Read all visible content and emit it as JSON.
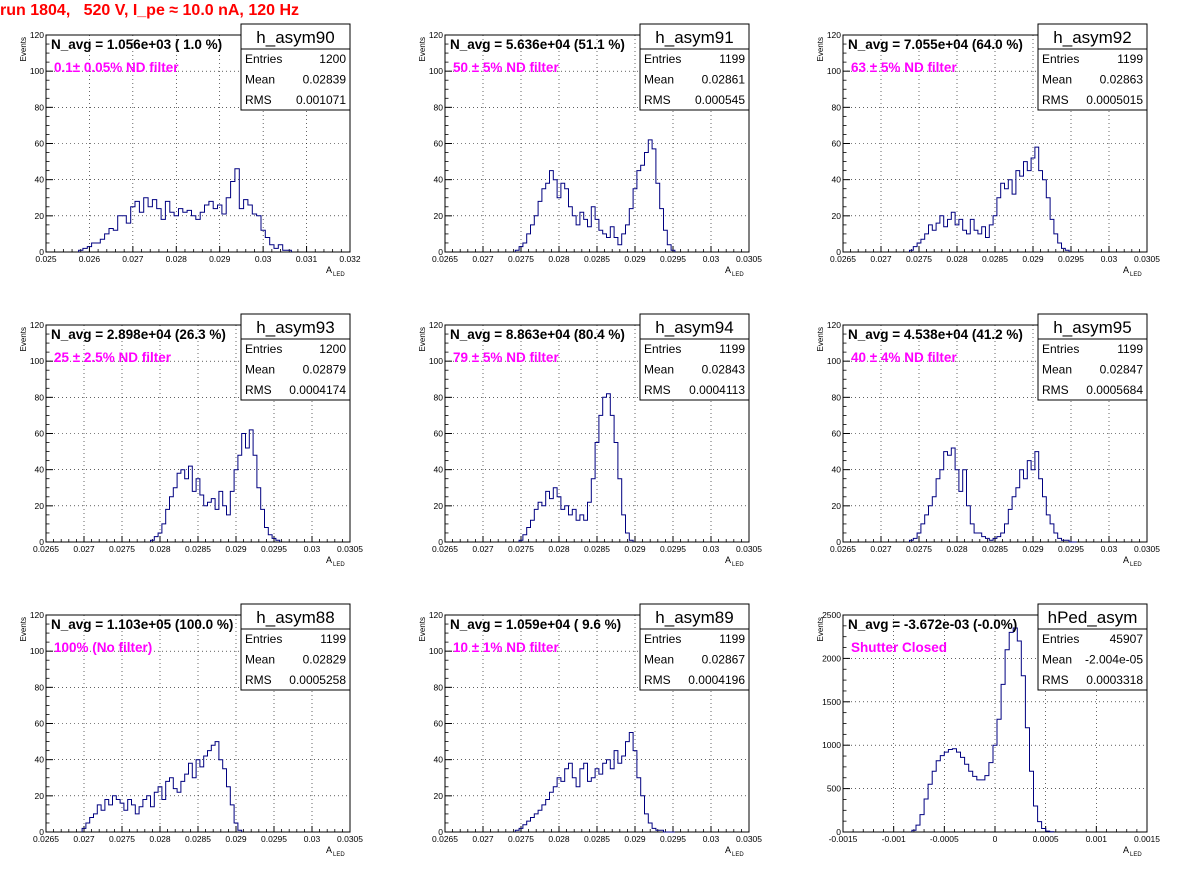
{
  "page": {
    "title": "run 1804,   520 V, I_pe ≈ 10.0 nA, 120 Hz",
    "title_color": "#ff0000",
    "annotation_color": "#ff00ff",
    "histogram_color": "#000080"
  },
  "chart_data": [
    {
      "type": "histogram",
      "name": "h_asym90",
      "xlabel": "A_LED",
      "ylabel": "Events",
      "xlim": [
        0.025,
        0.032
      ],
      "ylim": [
        0,
        120
      ],
      "xticks": [
        "0.025",
        "0.026",
        "0.027",
        "0.028",
        "0.029",
        "0.03",
        "0.031",
        "0.032"
      ],
      "yticks": [
        "0",
        "20",
        "40",
        "60",
        "80",
        "100",
        "120"
      ],
      "navg": "N_avg = 1.056e+03 ( 1.0 %)",
      "filter": "0.1± 0.05% ND filter",
      "stats": [
        [
          "Entries",
          "1200"
        ],
        [
          "Mean",
          "0.02839"
        ],
        [
          "RMS",
          "0.001071"
        ]
      ],
      "x": [
        0.0258,
        0.0259,
        0.026,
        0.0261,
        0.0262,
        0.0263,
        0.0264,
        0.0265,
        0.0266,
        0.0267,
        0.0268,
        0.0269,
        0.027,
        0.0271,
        0.0272,
        0.0273,
        0.0274,
        0.0275,
        0.0276,
        0.0277,
        0.0278,
        0.0279,
        0.028,
        0.0281,
        0.0282,
        0.0283,
        0.0284,
        0.0285,
        0.0286,
        0.0287,
        0.0288,
        0.0289,
        0.029,
        0.0291,
        0.0292,
        0.0293,
        0.0294,
        0.0295,
        0.0296,
        0.0297,
        0.0298,
        0.0299,
        0.03,
        0.0301,
        0.0302,
        0.0303,
        0.0304,
        0.0305,
        0.0306
      ],
      "values": [
        1,
        2,
        3,
        5,
        5,
        7,
        10,
        13,
        12,
        20,
        20,
        16,
        25,
        28,
        22,
        30,
        25,
        29,
        24,
        18,
        28,
        22,
        20,
        24,
        22,
        23,
        20,
        18,
        22,
        26,
        28,
        24,
        26,
        21,
        30,
        39,
        46,
        24,
        29,
        26,
        21,
        20,
        12,
        8,
        4,
        2,
        4,
        1,
        1
      ]
    },
    {
      "type": "histogram",
      "name": "h_asym91",
      "xlabel": "A_LED",
      "ylabel": "Events",
      "xlim": [
        0.0265,
        0.0305
      ],
      "ylim": [
        0,
        120
      ],
      "xticks": [
        "0.0265",
        "0.027",
        "0.0275",
        "0.028",
        "0.0285",
        "0.029",
        "0.0295",
        "0.03",
        "0.0305"
      ],
      "yticks": [
        "0",
        "20",
        "40",
        "60",
        "80",
        "100",
        "120"
      ],
      "navg": "N_avg = 5.636e+04 (51.1 %)",
      "filter": "50 ± 5% ND filter",
      "stats": [
        [
          "Entries",
          "1199"
        ],
        [
          "Mean",
          "0.02861"
        ],
        [
          "RMS",
          "0.000545"
        ]
      ],
      "x": [
        0.02745,
        0.0275,
        0.02755,
        0.0276,
        0.02765,
        0.0277,
        0.02775,
        0.0278,
        0.02785,
        0.0279,
        0.02795,
        0.028,
        0.02805,
        0.0281,
        0.02815,
        0.0282,
        0.02825,
        0.0283,
        0.02835,
        0.0284,
        0.02845,
        0.0285,
        0.02855,
        0.0286,
        0.02865,
        0.0287,
        0.02875,
        0.0288,
        0.02885,
        0.0289,
        0.02895,
        0.029,
        0.02905,
        0.0291,
        0.02915,
        0.0292,
        0.02925,
        0.0293,
        0.02935,
        0.0294,
        0.02945,
        0.0295
      ],
      "values": [
        1,
        3,
        5,
        10,
        15,
        20,
        28,
        35,
        38,
        45,
        40,
        30,
        38,
        35,
        25,
        20,
        15,
        22,
        18,
        14,
        25,
        18,
        12,
        10,
        8,
        14,
        8,
        4,
        10,
        15,
        24,
        35,
        45,
        48,
        55,
        62,
        57,
        38,
        24,
        12,
        4,
        1
      ]
    },
    {
      "type": "histogram",
      "name": "h_asym92",
      "xlabel": "A_LED",
      "ylabel": "Events",
      "xlim": [
        0.0265,
        0.0305
      ],
      "ylim": [
        0,
        120
      ],
      "xticks": [
        "0.0265",
        "0.027",
        "0.0275",
        "0.028",
        "0.0285",
        "0.029",
        "0.0295",
        "0.03",
        "0.0305"
      ],
      "yticks": [
        "0",
        "20",
        "40",
        "60",
        "80",
        "100",
        "120"
      ],
      "navg": "N_avg = 7.055e+04 (64.0 %)",
      "filter": "63 ± 5% ND filter",
      "stats": [
        [
          "Entries",
          "1199"
        ],
        [
          "Mean",
          "0.02863"
        ],
        [
          "RMS",
          "0.0005015"
        ]
      ],
      "x": [
        0.0274,
        0.02745,
        0.0275,
        0.02755,
        0.0276,
        0.02765,
        0.0277,
        0.02775,
        0.0278,
        0.02785,
        0.0279,
        0.02795,
        0.028,
        0.02805,
        0.0281,
        0.02815,
        0.0282,
        0.02825,
        0.0283,
        0.02835,
        0.0284,
        0.02845,
        0.0285,
        0.02855,
        0.0286,
        0.02865,
        0.0287,
        0.02875,
        0.0288,
        0.02885,
        0.0289,
        0.02895,
        0.029,
        0.02905,
        0.0291,
        0.02915,
        0.0292,
        0.02925,
        0.0293,
        0.02935,
        0.0294,
        0.02945
      ],
      "values": [
        1,
        3,
        5,
        7,
        10,
        15,
        12,
        16,
        20,
        14,
        18,
        22,
        15,
        18,
        12,
        10,
        18,
        12,
        10,
        14,
        8,
        15,
        20,
        30,
        38,
        35,
        40,
        32,
        45,
        42,
        50,
        45,
        52,
        58,
        45,
        40,
        30,
        18,
        10,
        5,
        2,
        1
      ]
    },
    {
      "type": "histogram",
      "name": "h_asym93",
      "xlabel": "A_LED",
      "ylabel": "Events",
      "xlim": [
        0.0265,
        0.0305
      ],
      "ylim": [
        0,
        120
      ],
      "xticks": [
        "0.0265",
        "0.027",
        "0.0275",
        "0.028",
        "0.0285",
        "0.029",
        "0.0295",
        "0.03",
        "0.0305"
      ],
      "yticks": [
        "0",
        "20",
        "40",
        "60",
        "80",
        "100",
        "120"
      ],
      "navg": "N_avg = 2.898e+04 (26.3 %)",
      "filter": "25 ± 2.5% ND filter",
      "stats": [
        [
          "Entries",
          "1200"
        ],
        [
          "Mean",
          "0.02879"
        ],
        [
          "RMS",
          "0.0004174"
        ]
      ],
      "x": [
        0.0279,
        0.02795,
        0.028,
        0.02805,
        0.0281,
        0.02815,
        0.0282,
        0.02825,
        0.0283,
        0.02835,
        0.0284,
        0.02845,
        0.0285,
        0.02855,
        0.0286,
        0.02865,
        0.0287,
        0.02875,
        0.0288,
        0.02885,
        0.0289,
        0.02895,
        0.029,
        0.02905,
        0.0291,
        0.02915,
        0.0292,
        0.02925,
        0.0293,
        0.02935,
        0.0294,
        0.02945,
        0.0295,
        0.02955
      ],
      "values": [
        1,
        3,
        5,
        10,
        18,
        25,
        30,
        38,
        40,
        35,
        42,
        28,
        35,
        26,
        20,
        22,
        24,
        18,
        28,
        20,
        15,
        28,
        40,
        48,
        60,
        52,
        62,
        48,
        30,
        18,
        8,
        4,
        2,
        1
      ]
    },
    {
      "type": "histogram",
      "name": "h_asym94",
      "xlabel": "A_LED",
      "ylabel": "Events",
      "xlim": [
        0.0265,
        0.0305
      ],
      "ylim": [
        0,
        120
      ],
      "xticks": [
        "0.0265",
        "0.027",
        "0.0275",
        "0.028",
        "0.0285",
        "0.029",
        "0.0295",
        "0.03",
        "0.0305"
      ],
      "yticks": [
        "0",
        "20",
        "40",
        "60",
        "80",
        "100",
        "120"
      ],
      "navg": "N_avg = 8.863e+04 (80.4 %)",
      "filter": "79 ± 5% ND filter",
      "stats": [
        [
          "Entries",
          "1199"
        ],
        [
          "Mean",
          "0.02843"
        ],
        [
          "RMS",
          "0.0004113"
        ]
      ],
      "x": [
        0.0275,
        0.02755,
        0.0276,
        0.02765,
        0.0277,
        0.02775,
        0.0278,
        0.02785,
        0.0279,
        0.02795,
        0.028,
        0.02805,
        0.0281,
        0.02815,
        0.0282,
        0.02825,
        0.0283,
        0.02835,
        0.0284,
        0.02845,
        0.0285,
        0.02855,
        0.0286,
        0.02865,
        0.0287,
        0.02875,
        0.0288,
        0.02885,
        0.0289,
        0.02895
      ],
      "values": [
        1,
        4,
        8,
        12,
        18,
        22,
        20,
        28,
        24,
        30,
        25,
        18,
        20,
        15,
        18,
        12,
        15,
        12,
        22,
        35,
        55,
        70,
        80,
        82,
        70,
        55,
        35,
        15,
        5,
        1
      ]
    },
    {
      "type": "histogram",
      "name": "h_asym95",
      "xlabel": "A_LED",
      "ylabel": "Events",
      "xlim": [
        0.0265,
        0.0305
      ],
      "ylim": [
        0,
        120
      ],
      "xticks": [
        "0.0265",
        "0.027",
        "0.0275",
        "0.028",
        "0.0285",
        "0.029",
        "0.0295",
        "0.03",
        "0.0305"
      ],
      "yticks": [
        "0",
        "20",
        "40",
        "60",
        "80",
        "100",
        "120"
      ],
      "navg": "N_avg = 4.538e+04 (41.2 %)",
      "filter": "40 ± 4% ND filter",
      "stats": [
        [
          "Entries",
          "1199"
        ],
        [
          "Mean",
          "0.02847"
        ],
        [
          "RMS",
          "0.0005684"
        ]
      ],
      "x": [
        0.0274,
        0.02745,
        0.0275,
        0.02755,
        0.0276,
        0.02765,
        0.0277,
        0.02775,
        0.0278,
        0.02785,
        0.0279,
        0.02795,
        0.028,
        0.02805,
        0.0281,
        0.02815,
        0.0282,
        0.02825,
        0.0283,
        0.02835,
        0.0284,
        0.02845,
        0.0285,
        0.02855,
        0.0286,
        0.02865,
        0.0287,
        0.02875,
        0.0288,
        0.02885,
        0.0289,
        0.02895,
        0.029,
        0.02905,
        0.0291,
        0.02915,
        0.0292,
        0.02925,
        0.0293,
        0.02935,
        0.0294,
        0.02945,
        0.0295,
        0.02955
      ],
      "values": [
        1,
        2,
        5,
        10,
        15,
        20,
        25,
        35,
        40,
        50,
        48,
        52,
        40,
        28,
        40,
        20,
        10,
        5,
        5,
        3,
        2,
        1,
        2,
        3,
        5,
        10,
        18,
        25,
        30,
        40,
        35,
        45,
        40,
        50,
        35,
        25,
        15,
        10,
        5,
        2,
        1,
        1,
        0,
        0
      ]
    },
    {
      "type": "histogram",
      "name": "h_asym88",
      "xlabel": "A_LED",
      "ylabel": "Events",
      "xlim": [
        0.0265,
        0.0305
      ],
      "ylim": [
        0,
        120
      ],
      "xticks": [
        "0.0265",
        "0.027",
        "0.0275",
        "0.028",
        "0.0285",
        "0.029",
        "0.0295",
        "0.03",
        "0.0305"
      ],
      "yticks": [
        "0",
        "20",
        "40",
        "60",
        "80",
        "100",
        "120"
      ],
      "navg": "N_avg = 1.103e+05 (100.0 %)",
      "filter": "100% (No filter)",
      "stats": [
        [
          "Entries",
          "1199"
        ],
        [
          "Mean",
          "0.02829"
        ],
        [
          "RMS",
          "0.0005258"
        ]
      ],
      "x": [
        0.027,
        0.02705,
        0.0271,
        0.02715,
        0.0272,
        0.02725,
        0.0273,
        0.02735,
        0.0274,
        0.02745,
        0.0275,
        0.02755,
        0.0276,
        0.02765,
        0.0277,
        0.02775,
        0.0278,
        0.02785,
        0.0279,
        0.02795,
        0.028,
        0.02805,
        0.0281,
        0.02815,
        0.0282,
        0.02825,
        0.0283,
        0.02835,
        0.0284,
        0.02845,
        0.0285,
        0.02855,
        0.0286,
        0.02865,
        0.0287,
        0.02875,
        0.0288,
        0.02885,
        0.0289,
        0.02895,
        0.029,
        0.02905
      ],
      "values": [
        2,
        5,
        8,
        10,
        15,
        12,
        18,
        15,
        20,
        18,
        16,
        12,
        18,
        15,
        10,
        14,
        18,
        20,
        14,
        22,
        25,
        18,
        28,
        30,
        24,
        22,
        28,
        32,
        38,
        30,
        40,
        36,
        42,
        45,
        48,
        50,
        40,
        35,
        25,
        15,
        5,
        1
      ]
    },
    {
      "type": "histogram",
      "name": "h_asym89",
      "xlabel": "A_LED",
      "ylabel": "Events",
      "xlim": [
        0.0265,
        0.0305
      ],
      "ylim": [
        0,
        120
      ],
      "xticks": [
        "0.0265",
        "0.027",
        "0.0275",
        "0.028",
        "0.0285",
        "0.029",
        "0.0295",
        "0.03",
        "0.0305"
      ],
      "yticks": [
        "0",
        "20",
        "40",
        "60",
        "80",
        "100",
        "120"
      ],
      "navg": "N_avg = 1.059e+04 ( 9.6 %)",
      "filter": "10 ± 1% ND filter",
      "stats": [
        [
          "Entries",
          "1199"
        ],
        [
          "Mean",
          "0.02867"
        ],
        [
          "RMS",
          "0.0004196"
        ]
      ],
      "x": [
        0.02745,
        0.0275,
        0.02755,
        0.0276,
        0.02765,
        0.0277,
        0.02775,
        0.0278,
        0.02785,
        0.0279,
        0.02795,
        0.028,
        0.02805,
        0.0281,
        0.02815,
        0.0282,
        0.02825,
        0.0283,
        0.02835,
        0.0284,
        0.02845,
        0.0285,
        0.02855,
        0.0286,
        0.02865,
        0.0287,
        0.02875,
        0.0288,
        0.02885,
        0.0289,
        0.02895,
        0.029,
        0.02905,
        0.0291,
        0.02915,
        0.0292,
        0.02925,
        0.0293,
        0.02935,
        0.0294,
        0.02945,
        0.0295
      ],
      "values": [
        1,
        2,
        4,
        6,
        8,
        10,
        12,
        15,
        18,
        22,
        25,
        30,
        28,
        35,
        38,
        30,
        25,
        35,
        38,
        28,
        30,
        35,
        32,
        38,
        40,
        35,
        45,
        38,
        42,
        50,
        55,
        45,
        30,
        20,
        10,
        5,
        2,
        1,
        1,
        0,
        0,
        0
      ]
    },
    {
      "type": "histogram",
      "name": "hPed_asym",
      "xlabel": "A_LED",
      "ylabel": "Events",
      "xlim": [
        -0.0015,
        0.0015
      ],
      "ylim": [
        0,
        2500
      ],
      "xticks": [
        "-0.0015",
        "-0.001",
        "-0.0005",
        "0",
        "0.0005",
        "0.001",
        "0.0015"
      ],
      "yticks": [
        "0",
        "500",
        "1000",
        "1500",
        "2000",
        "2500"
      ],
      "navg": "N_avg = -3.672e-03 (-0.0%)",
      "filter": "Shutter Closed",
      "stats": [
        [
          "Entries",
          "45907"
        ],
        [
          "Mean",
          "-2.004e-05"
        ],
        [
          "RMS",
          "0.0003318"
        ]
      ],
      "x": [
        -0.0008,
        -0.00076,
        -0.00072,
        -0.00068,
        -0.00064,
        -0.0006,
        -0.00056,
        -0.00052,
        -0.00048,
        -0.00044,
        -0.0004,
        -0.00036,
        -0.00032,
        -0.00028,
        -0.00024,
        -0.0002,
        -0.00016,
        -0.00012,
        -8e-05,
        -4e-05,
        0,
        4e-05,
        8e-05,
        0.00012,
        0.00016,
        0.0002,
        0.00024,
        0.00028,
        0.00032,
        0.00036,
        0.0004,
        0.00044,
        0.00048,
        0.00052,
        0.00056
      ],
      "values": [
        20,
        80,
        200,
        380,
        550,
        700,
        820,
        880,
        920,
        950,
        960,
        920,
        860,
        780,
        700,
        640,
        600,
        600,
        650,
        800,
        1000,
        1300,
        1700,
        2100,
        2300,
        2350,
        2200,
        1800,
        1200,
        700,
        300,
        120,
        40,
        10,
        2
      ]
    }
  ]
}
